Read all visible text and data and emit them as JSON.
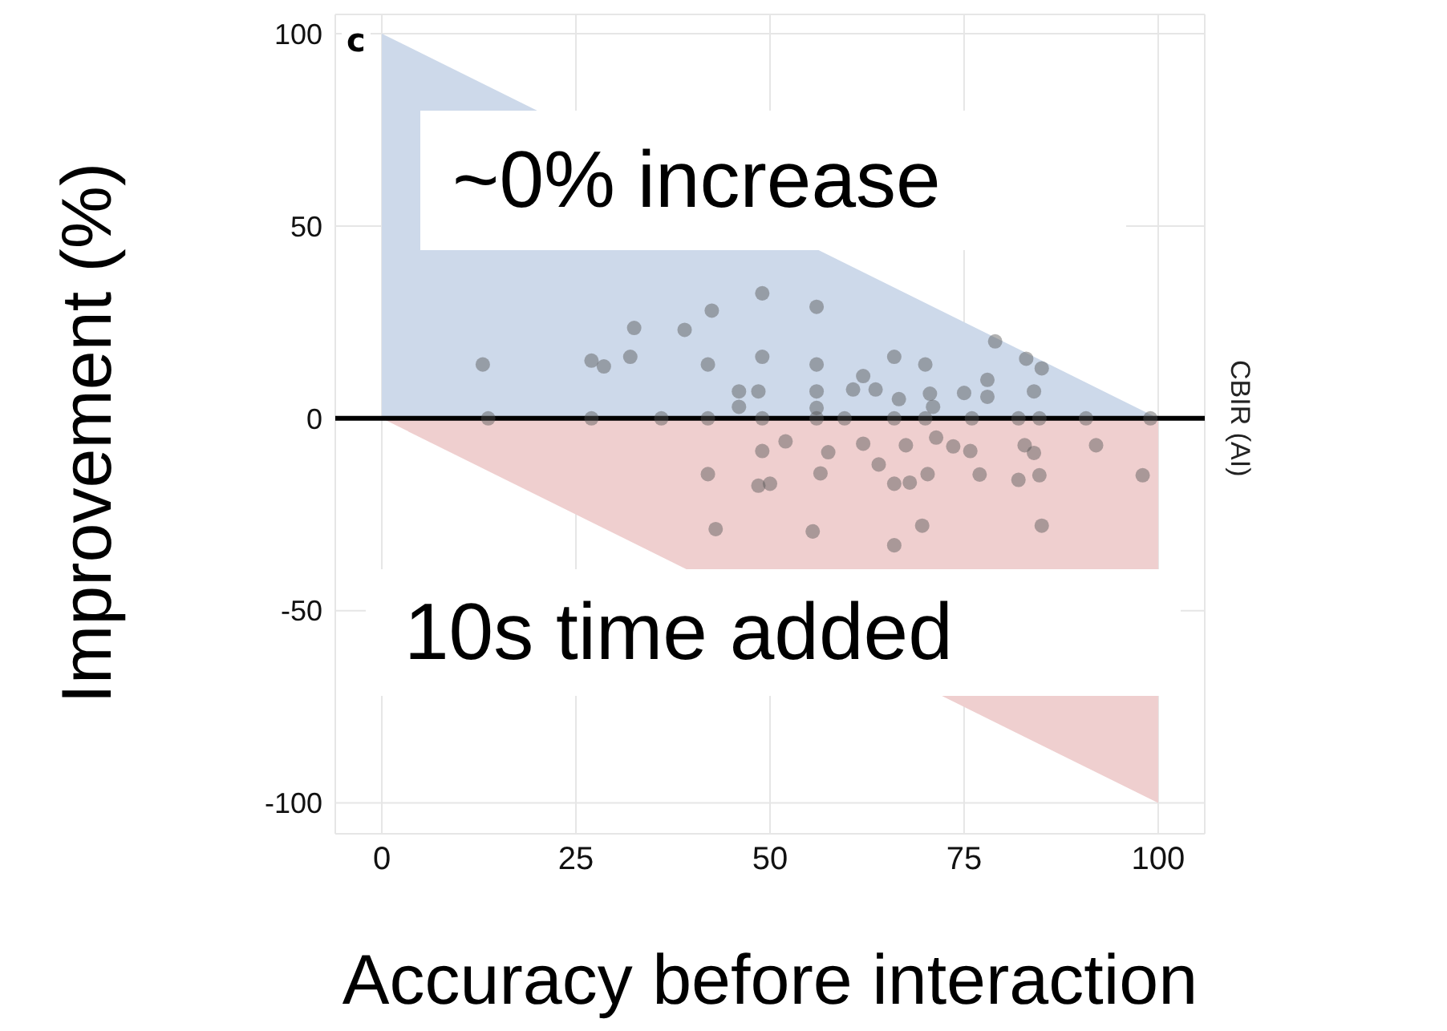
{
  "chart_data": {
    "type": "scatter",
    "xlabel": "Accuracy before interaction",
    "ylabel": "Improvement (%)",
    "xlim": [
      -6,
      106
    ],
    "ylim": [
      -108,
      105
    ],
    "xticks": [
      0,
      25,
      50,
      75,
      100
    ],
    "yticks": [
      -100,
      -50,
      0,
      50,
      100
    ],
    "grid": true,
    "ref_lines": [
      {
        "axis": "y",
        "value": 0,
        "label": "CBIR (AI)",
        "color": "#000000"
      }
    ],
    "annotations": [
      "c",
      "~0% increase",
      "10s time added"
    ],
    "series": [
      {
        "type": "area",
        "color": "#cdd9ea",
        "x": [
          0,
          100
        ],
        "values": [
          100,
          0
        ]
      },
      {
        "type": "area",
        "color": "#efcfcf",
        "x": [
          0,
          100
        ],
        "values": [
          0,
          -100
        ]
      },
      {
        "marker": "circle",
        "color": "#555555",
        "x": [
          13,
          27,
          28.6,
          32,
          32.5,
          39,
          42.5,
          42,
          49,
          49,
          56,
          56,
          46,
          48.5,
          46,
          56,
          56,
          62,
          60.7,
          63.6,
          66.6,
          66,
          70,
          70.6,
          71,
          75,
          78,
          78,
          79,
          83,
          85,
          84,
          13.7,
          27,
          36,
          42,
          49,
          56,
          59.6,
          66,
          70,
          76,
          82,
          84.7,
          90.7,
          99,
          52,
          49,
          57.5,
          62,
          67.5,
          71.4,
          73.6,
          75.8,
          82.8,
          84,
          92,
          64,
          42,
          56.5,
          48.5,
          50,
          66,
          68,
          70.3,
          77,
          82,
          84.7,
          98,
          43,
          55.5,
          69.6,
          85,
          66
        ],
        "values": [
          14,
          15,
          13.5,
          16,
          23.5,
          23,
          28,
          14,
          32.5,
          16,
          29,
          14,
          7,
          7,
          3,
          7,
          2.7,
          11,
          7.5,
          7.5,
          5,
          16,
          14,
          6.4,
          3,
          6.6,
          10,
          5.6,
          20,
          15.5,
          13,
          7,
          0,
          0,
          0,
          0,
          0,
          0,
          0,
          0,
          0,
          0,
          0,
          0,
          0,
          0,
          -6,
          -8.5,
          -8.8,
          -6.6,
          -7,
          -5,
          -7.3,
          -8.5,
          -7,
          -9,
          -7,
          -12,
          -14.5,
          -14.3,
          -17.5,
          -17,
          -17,
          -16.7,
          -14.5,
          -14.6,
          -16,
          -14.8,
          -14.8,
          -28.8,
          -29.4,
          -27.9,
          -27.9,
          -33
        ]
      }
    ]
  }
}
